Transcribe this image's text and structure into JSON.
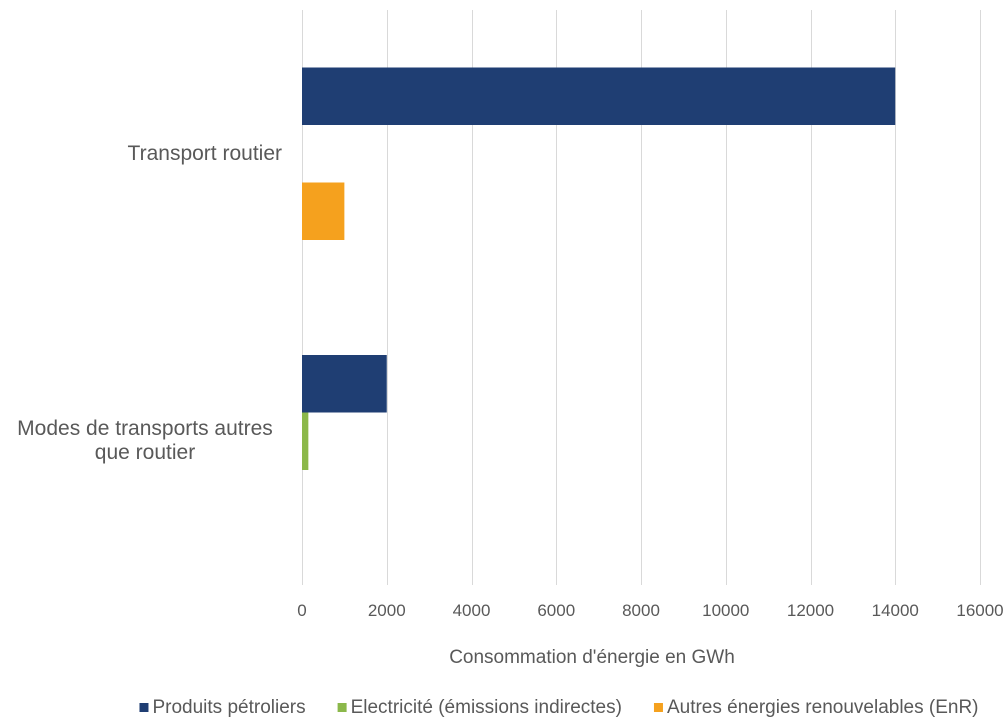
{
  "chart_data": {
    "type": "bar",
    "orientation": "horizontal",
    "categories": [
      "Transport routier",
      "Modes de transports autres que routier"
    ],
    "series": [
      {
        "name": "Produits pétroliers",
        "color": "#1f3e73",
        "values": [
          14000,
          2000
        ]
      },
      {
        "name": "Electricité (émissions indirectes)",
        "color": "#8bb84a",
        "values": [
          0,
          150
        ]
      },
      {
        "name": "Autres énergies renouvelables (EnR)",
        "color": "#f5a11e",
        "values": [
          1000,
          0
        ]
      }
    ],
    "xlabel": "Consommation d'énergie en GWh",
    "xlim": [
      0,
      16000
    ],
    "xticks": [
      0,
      2000,
      4000,
      6000,
      8000,
      10000,
      12000,
      14000,
      16000
    ],
    "grid": true,
    "legend": "bottom"
  }
}
